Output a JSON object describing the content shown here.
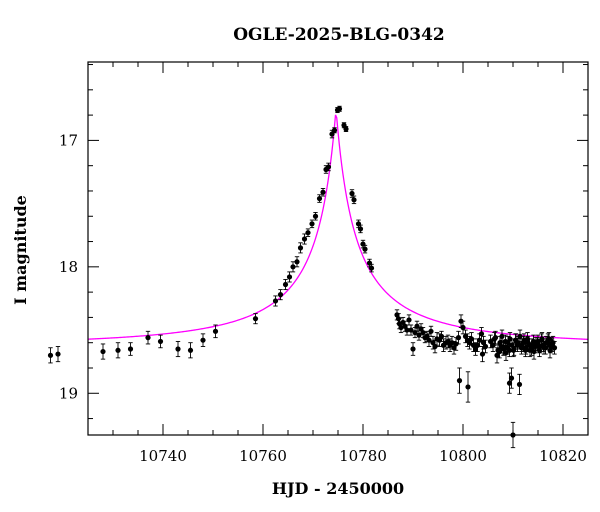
{
  "chart_data": {
    "type": "scatter",
    "title": "OGLE-2025-BLG-0342",
    "xlabel": "HJD - 2450000",
    "ylabel": "I magnitude",
    "xlim": [
      10725,
      10825
    ],
    "ylim": [
      19.33,
      16.38
    ],
    "y_inverted": true,
    "x_major_ticks": [
      10740,
      10760,
      10780,
      10800,
      10820
    ],
    "x_tick_labels": [
      "10740",
      "10760",
      "10780",
      "10800",
      "10820"
    ],
    "x_minor_step": 5,
    "y_major_ticks": [
      17,
      18,
      19
    ],
    "y_tick_labels": [
      "17",
      "18",
      "19"
    ],
    "y_minor_step": 0.2,
    "model": {
      "name": "model fit",
      "color": "#ff00ff",
      "t0": 10774.6,
      "base_mag": 18.63,
      "peak_mag": 16.75,
      "tau": 4.0
    },
    "series": [
      {
        "name": "OGLE data",
        "color": "#000000",
        "points": [
          [
            10725.5,
            18.7,
            0.06
          ],
          [
            10727,
            18.69,
            0.06
          ],
          [
            10736,
            18.67,
            0.06
          ],
          [
            10739,
            18.66,
            0.06
          ],
          [
            10741.5,
            18.65,
            0.05
          ],
          [
            10745,
            18.56,
            0.05
          ],
          [
            10747.5,
            18.59,
            0.05
          ],
          [
            10751,
            18.65,
            0.06
          ],
          [
            10753.5,
            18.66,
            0.06
          ],
          [
            10756,
            18.58,
            0.05
          ],
          [
            10758.5,
            18.51,
            0.05
          ],
          [
            10766.5,
            18.41,
            0.04
          ],
          [
            10770.5,
            18.27,
            0.04
          ],
          [
            10771.5,
            18.22,
            0.04
          ],
          [
            10772.5,
            18.14,
            0.04
          ],
          [
            10773.3,
            18.08,
            0.04
          ],
          [
            10774,
            18.0,
            0.04
          ],
          [
            10774.8,
            17.96,
            0.04
          ],
          [
            10775.5,
            17.85,
            0.04
          ],
          [
            10776.3,
            17.78,
            0.04
          ],
          [
            10777,
            17.73,
            0.03
          ],
          [
            10777.8,
            17.66,
            0.03
          ],
          [
            10778.5,
            17.6,
            0.03
          ],
          [
            10779.3,
            17.46,
            0.03
          ],
          [
            10780,
            17.41,
            0.03
          ],
          [
            10780.6,
            17.23,
            0.03
          ],
          [
            10781.1,
            17.21,
            0.03
          ],
          [
            10781.8,
            16.95,
            0.03
          ],
          [
            10782.3,
            16.92,
            0.02
          ],
          [
            10782.9,
            16.76,
            0.02
          ],
          [
            10783.3,
            16.75,
            0.02
          ],
          [
            10784.2,
            16.88,
            0.02
          ],
          [
            10784.6,
            16.91,
            0.02
          ],
          [
            10785.8,
            17.42,
            0.03
          ],
          [
            10786.2,
            17.47,
            0.03
          ],
          [
            10787.1,
            17.66,
            0.03
          ],
          [
            10787.5,
            17.7,
            0.03
          ],
          [
            10788,
            17.82,
            0.03
          ],
          [
            10788.4,
            17.86,
            0.03
          ],
          [
            10789.3,
            17.97,
            0.03
          ],
          [
            10789.7,
            18.01,
            0.03
          ],
          [
            10794.8,
            18.38,
            0.04
          ],
          [
            10795.1,
            18.41,
            0.04
          ],
          [
            10795.3,
            18.45,
            0.04
          ],
          [
            10795.6,
            18.48,
            0.04
          ],
          [
            10796,
            18.44,
            0.04
          ],
          [
            10796.4,
            18.47,
            0.04
          ],
          [
            10796.8,
            18.5,
            0.04
          ],
          [
            10797.2,
            18.42,
            0.04
          ],
          [
            10797.6,
            18.5,
            0.04
          ],
          [
            10798,
            18.65,
            0.05
          ],
          [
            10798.4,
            18.52,
            0.04
          ],
          [
            10798.8,
            18.47,
            0.04
          ],
          [
            10799.2,
            18.54,
            0.04
          ],
          [
            10799.6,
            18.49,
            0.04
          ],
          [
            10800,
            18.52,
            0.04
          ],
          [
            10800.4,
            18.56,
            0.04
          ],
          [
            10800.8,
            18.55,
            0.04
          ],
          [
            10801.2,
            18.58,
            0.05
          ],
          [
            10801.6,
            18.51,
            0.04
          ],
          [
            10802,
            18.6,
            0.05
          ],
          [
            10802.4,
            18.63,
            0.05
          ],
          [
            10802.8,
            18.57,
            0.05
          ],
          [
            10803.3,
            18.58,
            0.05
          ],
          [
            10803.7,
            18.55,
            0.04
          ],
          [
            10804.1,
            18.62,
            0.05
          ],
          [
            10804.6,
            18.6,
            0.05
          ],
          [
            10805,
            18.59,
            0.05
          ],
          [
            10805.4,
            18.62,
            0.05
          ],
          [
            10805.8,
            18.6,
            0.05
          ],
          [
            10806.2,
            18.64,
            0.05
          ],
          [
            10806.6,
            18.61,
            0.05
          ],
          [
            10807.1,
            18.56,
            0.05
          ],
          [
            10807.6,
            18.43,
            0.05
          ],
          [
            10808,
            18.48,
            0.05
          ],
          [
            10808.5,
            18.55,
            0.05
          ],
          [
            10808.9,
            18.58,
            0.05
          ],
          [
            10809.3,
            18.6,
            0.05
          ],
          [
            10809.7,
            18.57,
            0.05
          ],
          [
            10810.1,
            18.62,
            0.05
          ],
          [
            10810.5,
            18.65,
            0.05
          ],
          [
            10810.9,
            18.62,
            0.05
          ],
          [
            10811.3,
            18.58,
            0.05
          ],
          [
            10811.7,
            18.53,
            0.05
          ],
          [
            10812.1,
            18.6,
            0.05
          ],
          [
            10812.5,
            18.63,
            0.05
          ],
          [
            10807.3,
            18.9,
            0.1
          ],
          [
            10809,
            18.95,
            0.12
          ],
          [
            10811.9,
            18.69,
            0.06
          ],
          [
            10813.5,
            18.59,
            0.05
          ],
          [
            10814,
            18.62,
            0.05
          ],
          [
            10814.5,
            18.56,
            0.05
          ],
          [
            10815,
            18.66,
            0.05
          ],
          [
            10815.4,
            18.6,
            0.05
          ],
          [
            10815.8,
            18.55,
            0.05
          ],
          [
            10816.2,
            18.64,
            0.05
          ],
          [
            10816.6,
            18.68,
            0.06
          ],
          [
            10817,
            18.6,
            0.05
          ],
          [
            10817.4,
            18.57,
            0.05
          ],
          [
            10817.8,
            18.62,
            0.05
          ],
          [
            10818.2,
            18.65,
            0.05
          ],
          [
            10818.6,
            18.58,
            0.05
          ],
          [
            10819,
            18.6,
            0.05
          ],
          [
            10819.4,
            18.55,
            0.05
          ],
          [
            10819.8,
            18.62,
            0.05
          ],
          [
            10820.2,
            18.58,
            0.05
          ],
          [
            10820.6,
            18.64,
            0.05
          ],
          [
            10821,
            18.6,
            0.05
          ],
          [
            10821.4,
            18.66,
            0.05
          ],
          [
            10821.8,
            18.62,
            0.05
          ],
          [
            10822.2,
            18.67,
            0.06
          ],
          [
            10822.6,
            18.61,
            0.05
          ],
          [
            10823,
            18.59,
            0.05
          ],
          [
            10823.4,
            18.63,
            0.05
          ],
          [
            10823.8,
            18.57,
            0.05
          ],
          [
            10824.2,
            18.64,
            0.05
          ],
          [
            10824.6,
            18.6,
            0.05
          ],
          [
            10825,
            18.58,
            0.05
          ],
          [
            10825.4,
            18.66,
            0.06
          ],
          [
            10825.8,
            18.62,
            0.05
          ],
          [
            10814.3,
            18.57,
            0.05
          ],
          [
            10814.8,
            18.7,
            0.06
          ],
          [
            10815.3,
            18.67,
            0.05
          ],
          [
            10815.7,
            18.63,
            0.05
          ],
          [
            10816.1,
            18.65,
            0.05
          ],
          [
            10816.5,
            18.59,
            0.05
          ],
          [
            10816.9,
            18.64,
            0.05
          ],
          [
            10817.3,
            18.66,
            0.05
          ],
          [
            10817.7,
            18.88,
            0.08
          ],
          [
            10818.1,
            18.66,
            0.05
          ],
          [
            10818.5,
            18.58,
            0.05
          ],
          [
            10818.9,
            18.62,
            0.05
          ],
          [
            10819.3,
            18.93,
            0.08
          ],
          [
            10819.7,
            18.64,
            0.05
          ],
          [
            10820.1,
            18.6,
            0.05
          ],
          [
            10820.5,
            18.66,
            0.05
          ],
          [
            10820.9,
            18.57,
            0.05
          ],
          [
            10821.3,
            18.62,
            0.05
          ],
          [
            10821.7,
            18.65,
            0.05
          ],
          [
            10822.1,
            18.59,
            0.05
          ],
          [
            10822.5,
            18.63,
            0.05
          ],
          [
            10822.9,
            18.61,
            0.05
          ],
          [
            10823.3,
            18.66,
            0.05
          ],
          [
            10823.7,
            18.58,
            0.05
          ],
          [
            10824.1,
            18.62,
            0.05
          ],
          [
            10824.5,
            18.64,
            0.05
          ],
          [
            10824.9,
            18.6,
            0.05
          ],
          [
            10825.2,
            18.57,
            0.05
          ],
          [
            10825.5,
            18.63,
            0.05
          ],
          [
            10825.7,
            18.61,
            0.05
          ],
          [
            10826,
            18.6,
            0.05
          ],
          [
            10826.3,
            18.64,
            0.05
          ],
          [
            10817.3,
            18.92,
            0.08
          ],
          [
            10818,
            19.33,
            0.1
          ]
        ]
      }
    ]
  }
}
